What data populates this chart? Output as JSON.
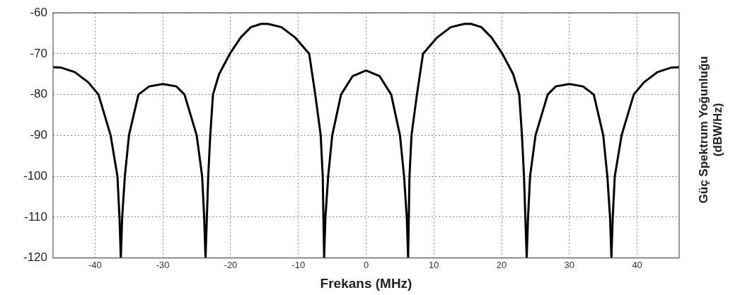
{
  "chart_data": {
    "type": "line",
    "xlabel": "Frekans (MHz)",
    "ylabel": "Güç Spektrum Yoğunluğu (dBW/Hz)",
    "xlim": [
      -46.2,
      46.2
    ],
    "xticks": [
      -40,
      -30,
      -20,
      -10,
      0,
      10,
      20,
      30,
      40
    ],
    "ylim": [
      -120,
      -60
    ],
    "yticks": [
      -120,
      -110,
      -100,
      -90,
      -80,
      -70,
      -60
    ],
    "grid": true,
    "legend": false,
    "marker": "none",
    "line_style": "solid",
    "series": [
      {
        "color": "#000000",
        "x": [
          -46.2,
          -45,
          -43,
          -41,
          -39.5,
          -37.7,
          -36.7,
          -36.4,
          -36.2,
          -36.0,
          -35.6,
          -35.0,
          -33.6,
          -32,
          -30,
          -28,
          -26.8,
          -25.0,
          -24.2,
          -23.9,
          -23.7,
          -23.5,
          -23.3,
          -23.0,
          -22.6,
          -21.7,
          -20.1,
          -18.5,
          -17,
          -15.5,
          -14.5,
          -12.5,
          -10.5,
          -8.4,
          -7.5,
          -6.7,
          -6.4,
          -6.3,
          -6.2,
          -6.0,
          -5.6,
          -5.0,
          -3.7,
          -2,
          0,
          2,
          3.7,
          5.0,
          5.6,
          6.0,
          6.2,
          6.3,
          6.4,
          6.7,
          7.5,
          8.4,
          10.5,
          12.5,
          14.5,
          15.5,
          17,
          18.5,
          20.1,
          21.7,
          22.6,
          23.0,
          23.3,
          23.5,
          23.7,
          23.9,
          24.2,
          25.0,
          26.8,
          28,
          30,
          32,
          33.6,
          35.0,
          35.6,
          36.0,
          36.2,
          36.4,
          36.7,
          37.7,
          39.5,
          41,
          43,
          45,
          46.2
        ],
        "values": [
          -73.3,
          -73.4,
          -74.5,
          -77,
          -80,
          -90,
          -100,
          -110,
          -120,
          -110,
          -100,
          -90,
          -80,
          -78,
          -77.4,
          -78,
          -80,
          -90,
          -100,
          -110,
          -120,
          -110,
          -100,
          -90,
          -80,
          -75,
          -70,
          -66,
          -63.5,
          -62.7,
          -62.7,
          -63.5,
          -66,
          -70,
          -80,
          -90,
          -100,
          -110,
          -120,
          -110,
          -100,
          -90,
          -80,
          -75.5,
          -74.1,
          -75.5,
          -80,
          -90,
          -100,
          -110,
          -120,
          -110,
          -100,
          -90,
          -80,
          -70,
          -66,
          -63.5,
          -62.7,
          -62.7,
          -63.5,
          -66,
          -70,
          -75,
          -80,
          -90,
          -100,
          -110,
          -120,
          -110,
          -100,
          -90,
          -80,
          -78,
          -77.4,
          -78,
          -80,
          -90,
          -100,
          -110,
          -120,
          -110,
          -100,
          -90,
          -80,
          -77,
          -74.5,
          -73.4,
          -73.3
        ]
      }
    ]
  }
}
